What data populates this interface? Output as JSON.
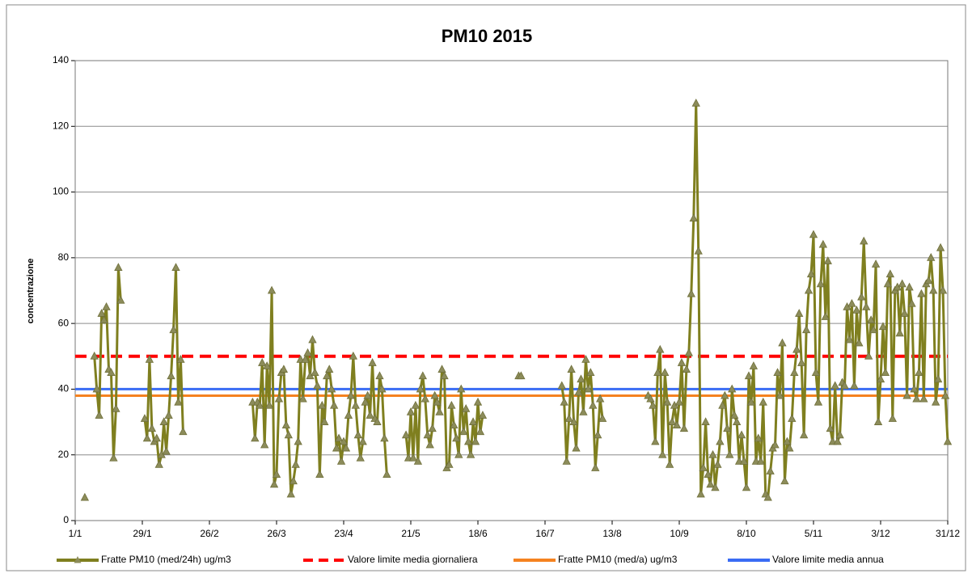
{
  "chart_data": {
    "type": "line",
    "title": "PM10 2015",
    "y_label": "concentrazione",
    "xlim": [
      0,
      364
    ],
    "ylim": [
      0,
      140
    ],
    "yticks": [
      0,
      20,
      40,
      60,
      80,
      100,
      120,
      140
    ],
    "xticks": [
      {
        "value": 0,
        "label": "1/1"
      },
      {
        "value": 28,
        "label": "29/1"
      },
      {
        "value": 56,
        "label": "26/2"
      },
      {
        "value": 84,
        "label": "26/3"
      },
      {
        "value": 112,
        "label": "23/4"
      },
      {
        "value": 140,
        "label": "21/5"
      },
      {
        "value": 168,
        "label": "18/6"
      },
      {
        "value": 196,
        "label": "16/7"
      },
      {
        "value": 224,
        "label": "13/8"
      },
      {
        "value": 252,
        "label": "10/9"
      },
      {
        "value": 280,
        "label": "8/10"
      },
      {
        "value": 308,
        "label": "5/11"
      },
      {
        "value": 336,
        "label": "3/12"
      },
      {
        "value": 364,
        "label": "31/12"
      }
    ],
    "grid": true,
    "series": [
      {
        "name": "Fratte PM10 (med/24h) ug/m3",
        "color": "#7f7f1f",
        "marker": "triangle",
        "dash": false,
        "x": [
          4,
          5,
          8,
          9,
          10,
          11,
          12,
          13,
          14,
          15,
          16,
          17,
          18,
          19,
          20,
          29,
          30,
          31,
          32,
          33,
          34,
          35,
          36,
          37,
          38,
          39,
          40,
          41,
          42,
          43,
          44,
          45,
          46,
          74,
          75,
          76,
          77,
          78,
          79,
          80,
          81,
          82,
          83,
          84,
          85,
          86,
          87,
          88,
          89,
          90,
          91,
          92,
          93,
          94,
          95,
          96,
          97,
          98,
          99,
          100,
          101,
          102,
          103,
          104,
          105,
          106,
          107,
          108,
          109,
          110,
          111,
          112,
          113,
          114,
          115,
          116,
          117,
          118,
          119,
          120,
          121,
          122,
          123,
          124,
          125,
          126,
          127,
          128,
          129,
          130,
          131,
          138,
          139,
          140,
          141,
          142,
          143,
          144,
          145,
          146,
          147,
          148,
          149,
          150,
          151,
          152,
          153,
          154,
          155,
          156,
          157,
          158,
          159,
          160,
          161,
          162,
          163,
          164,
          165,
          166,
          167,
          168,
          169,
          170,
          171,
          185,
          186,
          187,
          203,
          204,
          205,
          206,
          207,
          208,
          209,
          210,
          211,
          212,
          213,
          214,
          215,
          216,
          217,
          218,
          219,
          220,
          221,
          239,
          240,
          241,
          242,
          243,
          244,
          245,
          246,
          247,
          248,
          249,
          250,
          251,
          252,
          253,
          254,
          255,
          256,
          257,
          258,
          259,
          260,
          261,
          262,
          263,
          264,
          265,
          266,
          267,
          268,
          269,
          270,
          271,
          272,
          273,
          274,
          275,
          276,
          277,
          278,
          279,
          280,
          281,
          282,
          283,
          284,
          285,
          286,
          287,
          288,
          289,
          290,
          291,
          292,
          293,
          294,
          295,
          296,
          297,
          298,
          299,
          300,
          301,
          302,
          303,
          304,
          305,
          306,
          307,
          308,
          309,
          310,
          311,
          312,
          313,
          314,
          315,
          316,
          317,
          318,
          319,
          320,
          321,
          322,
          323,
          324,
          325,
          326,
          327,
          328,
          329,
          330,
          331,
          332,
          333,
          334,
          335,
          336,
          337,
          338,
          339,
          340,
          341,
          342,
          343,
          344,
          345,
          346,
          347,
          348,
          349,
          350,
          351,
          352,
          353,
          354,
          355,
          356,
          357,
          358,
          359,
          360,
          361,
          362,
          363,
          364
        ],
        "values": [
          7,
          null,
          50,
          40,
          32,
          63,
          61,
          65,
          46,
          45,
          19,
          34,
          77,
          67,
          null,
          31,
          25,
          49,
          28,
          24,
          25,
          17,
          20,
          30,
          21,
          32,
          44,
          58,
          77,
          36,
          49,
          27,
          null,
          36,
          25,
          36,
          35,
          48,
          23,
          47,
          35,
          70,
          11,
          14,
          37,
          45,
          46,
          29,
          26,
          8,
          12,
          17,
          24,
          49,
          37,
          49,
          51,
          44,
          55,
          45,
          41,
          14,
          35,
          30,
          44,
          46,
          40,
          35,
          22,
          25,
          18,
          24,
          22,
          32,
          38,
          50,
          35,
          26,
          19,
          24,
          36,
          38,
          32,
          48,
          31,
          30,
          44,
          40,
          25,
          14,
          null,
          26,
          19,
          33,
          19,
          35,
          18,
          40,
          44,
          37,
          26,
          23,
          28,
          38,
          36,
          33,
          46,
          44,
          16,
          17,
          35,
          29,
          25,
          20,
          40,
          27,
          34,
          24,
          20,
          30,
          24,
          36,
          27,
          32,
          null,
          44,
          44,
          null,
          41,
          36,
          18,
          31,
          46,
          30,
          22,
          39,
          43,
          33,
          49,
          40,
          45,
          35,
          16,
          26,
          37,
          31,
          null,
          38,
          37,
          35,
          24,
          45,
          52,
          20,
          45,
          36,
          17,
          30,
          35,
          29,
          36,
          48,
          28,
          46,
          51,
          69,
          92,
          127,
          82,
          8,
          16,
          30,
          14,
          11,
          20,
          10,
          17,
          24,
          35,
          38,
          28,
          20,
          40,
          32,
          30,
          18,
          26,
          18,
          10,
          44,
          36,
          47,
          18,
          25,
          18,
          36,
          8,
          7,
          15,
          22,
          23,
          45,
          38,
          54,
          12,
          24,
          22,
          31,
          45,
          52,
          63,
          48,
          26,
          58,
          70,
          75,
          87,
          45,
          36,
          72,
          84,
          62,
          79,
          28,
          24,
          41,
          24,
          26,
          42,
          41,
          65,
          55,
          66,
          41,
          64,
          54,
          68,
          85,
          65,
          50,
          61,
          58,
          78,
          30,
          43,
          59,
          45,
          72,
          75,
          31,
          70,
          71,
          57,
          72,
          63,
          38,
          71,
          66,
          40,
          37,
          45,
          69,
          37,
          72,
          73,
          80,
          70,
          36,
          43,
          83,
          70,
          38,
          24
        ]
      },
      {
        "name": "Valore limite media giornaliera",
        "color": "#ff0000",
        "dash": true,
        "x": [
          0,
          364
        ],
        "values": [
          50,
          50
        ]
      },
      {
        "name": "Fratte PM10 (med/a) ug/m3",
        "color": "#f58220",
        "dash": false,
        "x": [
          0,
          364
        ],
        "values": [
          38,
          38
        ]
      },
      {
        "name": "Valore limite media annua",
        "color": "#3a6cf4",
        "dash": false,
        "x": [
          0,
          364
        ],
        "values": [
          40,
          40
        ]
      }
    ]
  }
}
